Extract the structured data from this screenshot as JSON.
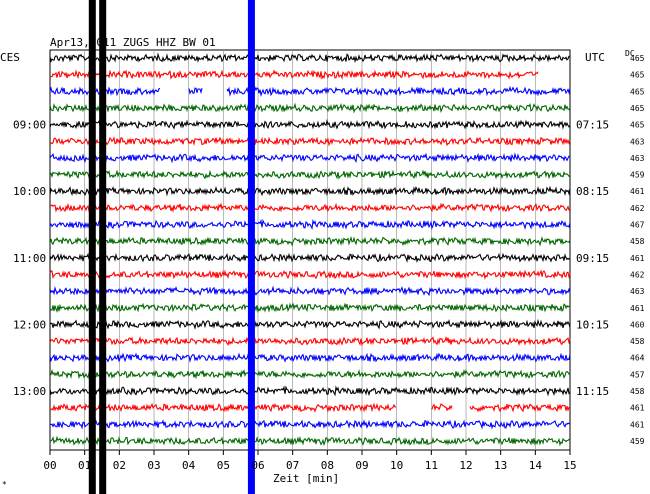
{
  "chart_data": {
    "type": "line",
    "title": "Apr13,2011   ZUGS HHZ BW 01",
    "left_unit": "CES",
    "right_unit": "UTC",
    "dc_label": "DC",
    "xlabel": "Zeit [min]",
    "xlim": [
      0,
      15
    ],
    "x_ticks": [
      "00",
      "01",
      "02",
      "03",
      "04",
      "05",
      "06",
      "07",
      "08",
      "09",
      "10",
      "11",
      "12",
      "13",
      "14",
      "15"
    ],
    "left_hour_labels": [
      {
        "trace": 4,
        "text": "09:00"
      },
      {
        "trace": 8,
        "text": "10:00"
      },
      {
        "trace": 12,
        "text": "11:00"
      },
      {
        "trace": 16,
        "text": "12:00"
      },
      {
        "trace": 20,
        "text": "13:00"
      }
    ],
    "right_hour_labels": [
      {
        "trace": 4,
        "text": "07:15"
      },
      {
        "trace": 8,
        "text": "08:15"
      },
      {
        "trace": 12,
        "text": "09:15"
      },
      {
        "trace": 16,
        "text": "10:15"
      },
      {
        "trace": 20,
        "text": "11:15"
      }
    ],
    "trace_colors": [
      "#000000",
      "#ff0000",
      "#0000ff",
      "#006600"
    ],
    "dc_values": [
      "465",
      "465",
      "465",
      "465",
      "465",
      "463",
      "463",
      "459",
      "461",
      "462",
      "467",
      "458",
      "461",
      "462",
      "463",
      "461",
      "460",
      "458",
      "464",
      "457",
      "458",
      "461",
      "461",
      "459"
    ],
    "gaps": [
      {
        "trace": 1,
        "from": 14.1,
        "to": 15.0
      },
      {
        "trace": 2,
        "from": 3.2,
        "to": 4.0
      },
      {
        "trace": 2,
        "from": 4.4,
        "to": 5.1
      },
      {
        "trace": 21,
        "from": 10.0,
        "to": 11.0
      },
      {
        "trace": 21,
        "from": 11.6,
        "to": 12.1
      }
    ],
    "vertical_events": [
      {
        "x": 1.22,
        "color": "#000000"
      },
      {
        "x": 1.52,
        "color": "#000000"
      },
      {
        "x": 5.81,
        "color": "#0000ff"
      }
    ],
    "grid": true
  }
}
